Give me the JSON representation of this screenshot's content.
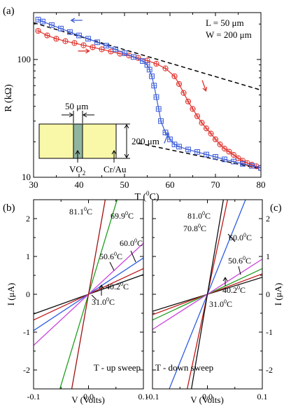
{
  "chart_data": [
    {
      "panel_label": "(a)",
      "type": "line",
      "xlabel": "T (",
      "xlabel_unit_sup": "0",
      "xlabel_unit_tail": "C)",
      "ylabel": "R (kΩ)",
      "x_scale": "linear",
      "y_scale": "log",
      "xlim": [
        30,
        80
      ],
      "ylim": [
        10,
        250
      ],
      "xticks": [
        30,
        40,
        50,
        60,
        70,
        80
      ],
      "xtick_labels": [
        "30",
        "40",
        "50",
        "60",
        "70",
        "80"
      ],
      "yticks": [
        10,
        100
      ],
      "ytick_labels": [
        "10",
        "100"
      ],
      "annotations": [
        "L = 50 μm",
        "W = 200 μm"
      ],
      "grid": false,
      "inset": {
        "labels": [
          "50 μm",
          "200 μm",
          "VO",
          "2",
          "Cr/Au"
        ],
        "colors": {
          "pad": "#f8f8a8",
          "channel": "#8fb4a0"
        }
      },
      "series": [
        {
          "color": "#e0302a",
          "marker": "circle-plus",
          "x": [
            31,
            33,
            35,
            37,
            39,
            41,
            43,
            45,
            47,
            49,
            51,
            53,
            55,
            57,
            59,
            61,
            62,
            63,
            64,
            65,
            66,
            67,
            68,
            69,
            70,
            71,
            72,
            73,
            74,
            75,
            76,
            77,
            78,
            79,
            80
          ],
          "y": [
            175,
            160,
            150,
            143,
            138,
            132,
            127,
            122,
            117,
            112,
            108,
            103,
            98,
            92,
            84,
            72,
            62,
            52,
            44,
            38,
            33,
            29,
            26,
            23.5,
            21,
            19,
            17.5,
            16.5,
            15.5,
            14.5,
            13.8,
            13.2,
            12.8,
            12.4,
            12
          ]
        },
        {
          "color": "#3a5ad8",
          "marker": "square-plus",
          "x": [
            80,
            78,
            76,
            74,
            72,
            70,
            68,
            66,
            64,
            62,
            61,
            60,
            59,
            58,
            57.5,
            57,
            56.5,
            56,
            55.5,
            55,
            54,
            52,
            50,
            48,
            46,
            44,
            42,
            40,
            38,
            36,
            34,
            32,
            31
          ],
          "y": [
            12,
            12.5,
            13,
            13.6,
            14.2,
            14.9,
            15.6,
            16.4,
            17.2,
            18.2,
            19,
            21,
            24,
            30,
            38,
            48,
            60,
            72,
            82,
            90,
            97,
            105,
            113,
            122,
            131,
            140,
            150,
            160,
            171,
            183,
            196,
            210,
            218
          ]
        }
      ],
      "reference_lines": [
        {
          "style": "dashed",
          "x": [
            30,
            80
          ],
          "y": [
            205,
            55
          ]
        },
        {
          "style": "dashed",
          "x": [
            53,
            80
          ],
          "y": [
            19.5,
            11.8
          ]
        }
      ],
      "arrows": [
        {
          "color": "#3a5ad8",
          "direction": "left"
        },
        {
          "color": "#e0302a",
          "direction": "right"
        },
        {
          "color": "#e0302a",
          "direction": "down"
        },
        {
          "color": "#3a5ad8",
          "direction": "up"
        }
      ]
    },
    {
      "panel_label": "(b)",
      "type": "line",
      "xlabel": "V (Volts)",
      "ylabel": "I (μA)",
      "xlim": [
        -0.1,
        0.1
      ],
      "ylim": [
        -2.5,
        2.5
      ],
      "xticks": [
        -0.1,
        0.0,
        0.1
      ],
      "xtick_labels": [
        "-0.1",
        "0.0",
        "0.1"
      ],
      "yticks": [
        -2,
        -1,
        0,
        1,
        2
      ],
      "ytick_labels": [
        "-2",
        "-1",
        "0",
        "1",
        "2"
      ],
      "annotations": [
        "T - up sweep"
      ],
      "grid": false,
      "series": [
        {
          "name": "31.0",
          "label_sup": "0",
          "label_tail": "C",
          "color": "#111111",
          "slope": 5.2
        },
        {
          "name": "40.2",
          "label_sup": "0",
          "label_tail": "C",
          "color": "#c01818",
          "slope": 6.8
        },
        {
          "name": "50.6",
          "label_sup": "0",
          "label_tail": "C",
          "color": "#2f5de0",
          "slope": 9.6
        },
        {
          "name": "60.0",
          "label_sup": "0",
          "label_tail": "C",
          "color": "#cc44dd",
          "slope": 13.5
        },
        {
          "name": "69.9",
          "label_sup": "0",
          "label_tail": "C",
          "color": "#20a020",
          "slope": 48
        },
        {
          "name": "81.1",
          "label_sup": "0",
          "label_tail": "C",
          "color": "#a01010",
          "slope": 82
        }
      ]
    },
    {
      "panel_label": "(c)",
      "type": "line",
      "xlabel": "V (Volts)",
      "ylabel": "I (μA)",
      "xlim": [
        -0.1,
        0.1
      ],
      "ylim": [
        -2.5,
        2.5
      ],
      "xticks": [
        -0.1,
        0.0,
        0.1
      ],
      "xtick_labels": [
        "-0.1",
        "0.0",
        "0.1"
      ],
      "yticks": [
        -2,
        -1,
        0,
        1,
        2
      ],
      "ytick_labels": [
        "-2",
        "-1",
        "0",
        "1",
        "2"
      ],
      "annotations": [
        "T - down sweep"
      ],
      "grid": false,
      "series": [
        {
          "name": "31.0",
          "label_sup": "0",
          "label_tail": "C",
          "color": "#111111",
          "slope": 4.5
        },
        {
          "name": "40.2",
          "label_sup": "0",
          "label_tail": "C",
          "color": "#c01818",
          "slope": 5.4
        },
        {
          "name": "50.6",
          "label_sup": "0",
          "label_tail": "C",
          "color": "#20a020",
          "slope": 6.8
        },
        {
          "name": "",
          "color": "#cc44dd",
          "slope": 9.3
        },
        {
          "name": "60.0",
          "label_sup": "0",
          "label_tail": "C",
          "color": "#2f5de0",
          "slope": 36
        },
        {
          "name": "70.8",
          "label_sup": "0",
          "label_tail": "C",
          "color": "#c01818",
          "slope": 68
        },
        {
          "name": "81.0",
          "label_sup": "0",
          "label_tail": "C",
          "color": "#111111",
          "slope": 86
        }
      ]
    }
  ]
}
